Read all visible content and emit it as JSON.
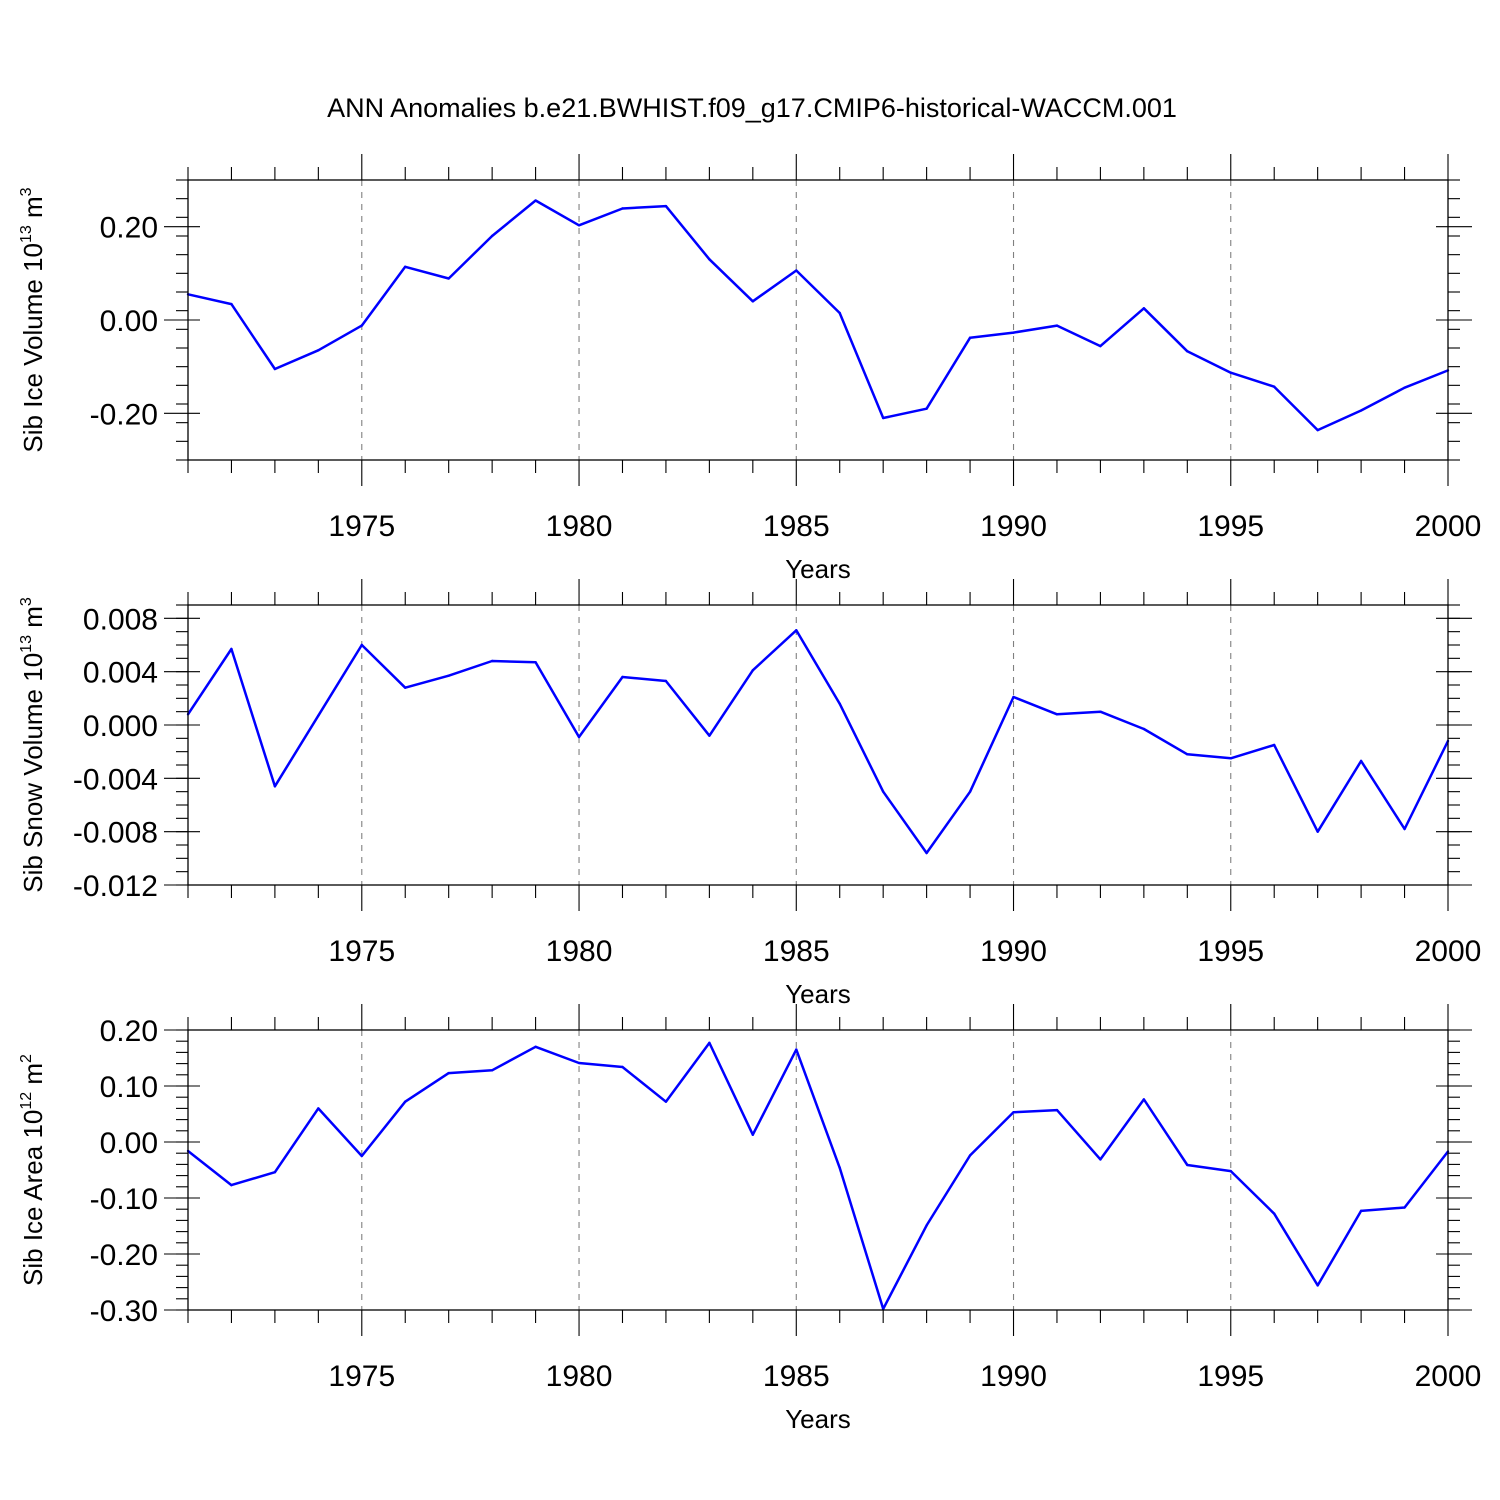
{
  "figure_title": "ANN Anomalies b.e21.BWHIST.f09_g17.CMIP6-historical-WACCM.001",
  "colors": {
    "series": "#0000FF",
    "grid": "#808080",
    "frame": "#000000"
  },
  "chart_data": [
    {
      "type": "line",
      "xlabel": "Years",
      "ylabel_parts": {
        "text": "Sib Ice Volume 10",
        "exp1": "13",
        "unit": " m",
        "exp2": "3"
      },
      "xlim": [
        1971,
        2000
      ],
      "ylim": [
        -0.3,
        0.3
      ],
      "xticks": [
        1975,
        1980,
        1985,
        1990,
        1995,
        2000
      ],
      "xtick_labels": [
        "1975",
        "1980",
        "1985",
        "1990",
        "1995",
        "2000"
      ],
      "yticks": [
        -0.2,
        0.0,
        0.2
      ],
      "ytick_labels": [
        "-0.20",
        "0.00",
        "0.20"
      ],
      "y_minor_step": 0.04,
      "grid": "vertical dashed at major x ticks",
      "x": [
        1971,
        1972,
        1973,
        1974,
        1975,
        1976,
        1977,
        1978,
        1979,
        1980,
        1981,
        1982,
        1983,
        1984,
        1985,
        1986,
        1987,
        1988,
        1989,
        1990,
        1991,
        1992,
        1993,
        1994,
        1995,
        1996,
        1997,
        1998,
        1999,
        2000
      ],
      "y": [
        0.055,
        0.034,
        -0.105,
        -0.065,
        -0.012,
        0.114,
        0.089,
        0.18,
        0.256,
        0.203,
        0.239,
        0.244,
        0.13,
        0.04,
        0.106,
        0.015,
        -0.21,
        -0.19,
        -0.038,
        -0.027,
        -0.012,
        -0.056,
        0.025,
        -0.067,
        -0.113,
        -0.143,
        -0.236,
        -0.194,
        -0.145,
        -0.108
      ]
    },
    {
      "type": "line",
      "xlabel": "Years",
      "ylabel_parts": {
        "text": "Sib Snow Volume 10",
        "exp1": "13",
        "unit": " m",
        "exp2": "3"
      },
      "xlim": [
        1971,
        2000
      ],
      "ylim": [
        -0.012,
        0.009
      ],
      "xticks": [
        1975,
        1980,
        1985,
        1990,
        1995,
        2000
      ],
      "xtick_labels": [
        "1975",
        "1980",
        "1985",
        "1990",
        "1995",
        "2000"
      ],
      "yticks": [
        -0.012,
        -0.008,
        -0.004,
        0.0,
        0.004,
        0.008
      ],
      "ytick_labels": [
        "-0.012",
        "-0.008",
        "-0.004",
        "0.000",
        "0.004",
        "0.008"
      ],
      "y_minor_step": 0.001,
      "grid": "vertical dashed at major x ticks",
      "x": [
        1971,
        1972,
        1973,
        1974,
        1975,
        1976,
        1977,
        1978,
        1979,
        1980,
        1981,
        1982,
        1983,
        1984,
        1985,
        1986,
        1987,
        1988,
        1989,
        1990,
        1991,
        1992,
        1993,
        1994,
        1995,
        1996,
        1997,
        1998,
        1999,
        2000
      ],
      "y": [
        0.0008,
        0.0057,
        -0.0046,
        0.0007,
        0.006,
        0.0028,
        0.0037,
        0.0048,
        0.0047,
        -0.0009,
        0.0036,
        0.0033,
        -0.0008,
        0.0041,
        0.0071,
        0.0016,
        -0.005,
        -0.0096,
        -0.005,
        0.0021,
        0.0008,
        0.001,
        -0.0003,
        -0.0022,
        -0.0025,
        -0.0015,
        -0.008,
        -0.0027,
        -0.0078,
        -0.0012
      ]
    },
    {
      "type": "line",
      "xlabel": "Years",
      "ylabel_parts": {
        "text": "Sib Ice Area 10",
        "exp1": "12",
        "unit": " m",
        "exp2": "2"
      },
      "xlim": [
        1971,
        2000
      ],
      "ylim": [
        -0.3,
        0.2
      ],
      "xticks": [
        1975,
        1980,
        1985,
        1990,
        1995,
        2000
      ],
      "xtick_labels": [
        "1975",
        "1980",
        "1985",
        "1990",
        "1995",
        "2000"
      ],
      "yticks": [
        -0.3,
        -0.2,
        -0.1,
        0.0,
        0.1,
        0.2
      ],
      "ytick_labels": [
        "-0.30",
        "-0.20",
        "-0.10",
        "0.00",
        "0.10",
        "0.20"
      ],
      "y_minor_step": 0.02,
      "grid": "vertical dashed at major x ticks",
      "x": [
        1971,
        1972,
        1973,
        1974,
        1975,
        1976,
        1977,
        1978,
        1979,
        1980,
        1981,
        1982,
        1983,
        1984,
        1985,
        1986,
        1987,
        1988,
        1989,
        1990,
        1991,
        1992,
        1993,
        1994,
        1995,
        1996,
        1997,
        1998,
        1999,
        2000
      ],
      "y": [
        -0.016,
        -0.077,
        -0.054,
        0.06,
        -0.025,
        0.072,
        0.123,
        0.128,
        0.17,
        0.141,
        0.134,
        0.072,
        0.177,
        0.013,
        0.165,
        -0.046,
        -0.298,
        -0.149,
        -0.024,
        0.053,
        0.057,
        -0.031,
        0.076,
        -0.041,
        -0.052,
        -0.128,
        -0.256,
        -0.123,
        -0.117,
        -0.017
      ]
    }
  ]
}
